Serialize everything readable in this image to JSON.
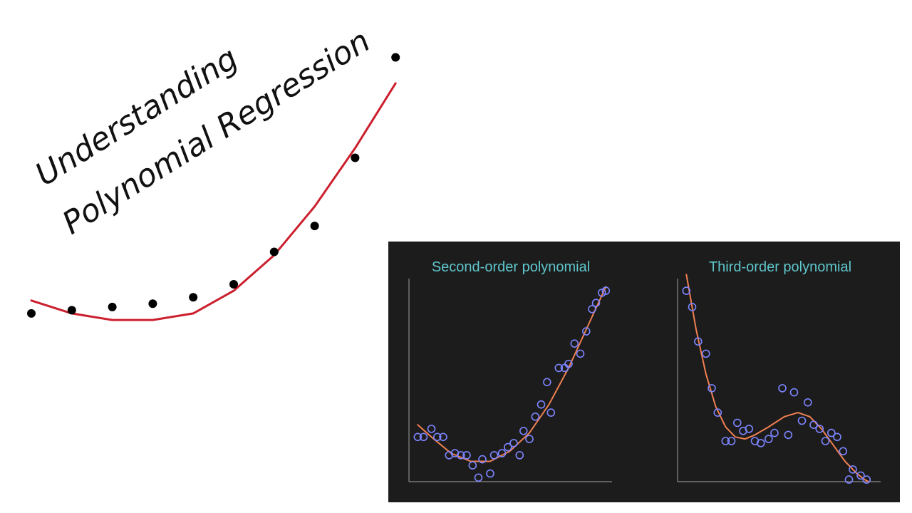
{
  "colors": {
    "background": "#ffffff",
    "hero_points": "#000000",
    "hero_curve": "#cc1f2d",
    "panel_background": "#1c1c1c",
    "panel_axes": "#8a8a8a",
    "panel_points": "#7c85ff",
    "panel_curve": "#f08052",
    "panel_titles": "#5fc6cc"
  },
  "hero": {
    "title_line1": "Understanding",
    "title_line2": "Polynomial Regression"
  },
  "chart_data": [
    {
      "type": "scatter",
      "title": "",
      "xlabel": "",
      "ylabel": "",
      "xlim": [
        0,
        10
      ],
      "ylim": [
        0,
        10
      ],
      "grid": false,
      "series": [
        {
          "kind": "points",
          "x": [
            0,
            1,
            2,
            3,
            4,
            5,
            6,
            7,
            8,
            9
          ],
          "y": [
            1.1,
            1.2,
            1.3,
            1.4,
            1.6,
            2.0,
            3.0,
            3.8,
            5.9,
            9.0
          ]
        },
        {
          "kind": "fit",
          "x": [
            0,
            1,
            2,
            3,
            4,
            5,
            6,
            7,
            8,
            9
          ],
          "y": [
            1.5,
            1.1,
            0.9,
            0.9,
            1.1,
            1.8,
            2.9,
            4.4,
            6.2,
            8.2
          ]
        }
      ]
    },
    {
      "type": "scatter",
      "title": "Second-order polynomial",
      "xlabel": "",
      "ylabel": "",
      "xlim": [
        0,
        10
      ],
      "ylim": [
        0,
        10
      ],
      "grid": false,
      "series": [
        {
          "kind": "points",
          "x": [
            0.3,
            0.6,
            1.0,
            1.3,
            1.6,
            1.9,
            2.2,
            2.5,
            2.8,
            3.1,
            3.4,
            3.6,
            4.0,
            4.2,
            4.6,
            4.9,
            5.2,
            5.5,
            5.7,
            6.0,
            6.3,
            6.6,
            6.9,
            7.1,
            7.5,
            7.8,
            8.0,
            8.3,
            8.6,
            8.9,
            9.2,
            9.4,
            9.7,
            9.9
          ],
          "y": [
            2.2,
            2.2,
            2.6,
            2.2,
            2.2,
            1.3,
            1.4,
            1.3,
            1.3,
            0.8,
            0.2,
            1.1,
            0.4,
            1.3,
            1.4,
            1.7,
            1.9,
            1.3,
            2.5,
            2.1,
            3.2,
            3.8,
            4.9,
            3.4,
            5.6,
            5.6,
            5.8,
            6.8,
            6.3,
            7.4,
            8.5,
            8.8,
            9.3,
            9.4
          ]
        },
        {
          "kind": "fit",
          "x": [
            0.3,
            1.0,
            2.0,
            3.0,
            4.0,
            5.0,
            6.0,
            7.0,
            8.0,
            9.0,
            9.9
          ],
          "y": [
            2.8,
            2.2,
            1.4,
            1.0,
            1.0,
            1.5,
            2.4,
            3.8,
            5.6,
            7.7,
            9.6
          ]
        }
      ]
    },
    {
      "type": "scatter",
      "title": "Third-order polynomial",
      "xlabel": "",
      "ylabel": "",
      "xlim": [
        0,
        10
      ],
      "ylim": [
        0,
        10
      ],
      "grid": false,
      "series": [
        {
          "kind": "points",
          "x": [
            0.3,
            0.6,
            0.9,
            1.3,
            1.6,
            1.9,
            2.3,
            2.6,
            2.9,
            3.2,
            3.5,
            3.8,
            4.1,
            4.5,
            4.8,
            5.2,
            5.5,
            5.8,
            6.2,
            6.5,
            6.8,
            7.1,
            7.4,
            7.7,
            8.0,
            8.3,
            8.6,
            8.8,
            9.2,
            9.5
          ],
          "y": [
            9.4,
            8.6,
            6.9,
            6.3,
            4.6,
            3.4,
            2.0,
            2.0,
            2.9,
            2.5,
            2.6,
            2.0,
            1.9,
            2.1,
            2.4,
            4.6,
            2.3,
            4.4,
            3.0,
            3.9,
            2.8,
            2.6,
            2.0,
            2.4,
            2.2,
            1.5,
            0.1,
            0.6,
            0.3,
            0.1
          ]
        },
        {
          "kind": "fit",
          "x": [
            0.3,
            0.8,
            1.3,
            1.8,
            2.3,
            2.8,
            3.3,
            3.8,
            4.5,
            5.3,
            6.0,
            6.6,
            7.2,
            7.8,
            8.4,
            9.0,
            9.4,
            9.6
          ],
          "y": [
            10.2,
            7.5,
            5.3,
            3.7,
            2.7,
            2.2,
            2.1,
            2.3,
            2.7,
            3.2,
            3.4,
            3.2,
            2.6,
            1.8,
            1.0,
            0.4,
            0.1,
            0.0
          ]
        }
      ]
    }
  ]
}
